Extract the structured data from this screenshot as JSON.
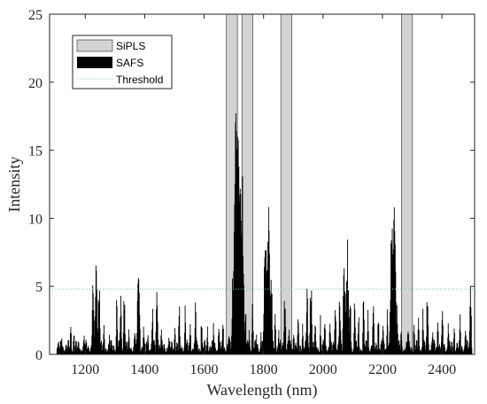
{
  "chart_data": {
    "type": "bar",
    "xlabel": "Wavelength (nm)",
    "ylabel": "Intensity",
    "xlim": [
      1080,
      2510
    ],
    "ylim": [
      0,
      25
    ],
    "x_ticks": [
      1200,
      1400,
      1600,
      1800,
      2000,
      2200,
      2400
    ],
    "y_ticks": [
      0,
      5,
      10,
      15,
      20,
      25
    ],
    "grid": false,
    "legend_placement": "top-left",
    "threshold": {
      "name": "Threshold",
      "value": 4.8,
      "color": "#7fbfbf"
    },
    "sipls_intervals": {
      "name": "SiPLS",
      "color": "#d3d3d3",
      "ranges": [
        [
          1675,
          1712
        ],
        [
          1727,
          1764
        ],
        [
          1858,
          1895
        ],
        [
          2264,
          2301
        ]
      ]
    },
    "safs_peaks": {
      "name": "SAFS",
      "color": "#000000",
      "peaks": [
        [
          1105,
          0.8
        ],
        [
          1120,
          1.2
        ],
        [
          1150,
          2.9
        ],
        [
          1160,
          2.2
        ],
        [
          1195,
          1.9
        ],
        [
          1225,
          6.2
        ],
        [
          1235,
          7.0
        ],
        [
          1245,
          6.1
        ],
        [
          1262,
          2.5
        ],
        [
          1280,
          1.8
        ],
        [
          1305,
          4.4
        ],
        [
          1318,
          4.7
        ],
        [
          1330,
          5.0
        ],
        [
          1345,
          2.1
        ],
        [
          1365,
          2.4
        ],
        [
          1378,
          7.5
        ],
        [
          1395,
          2.3
        ],
        [
          1410,
          1.9
        ],
        [
          1425,
          3.9
        ],
        [
          1440,
          5.6
        ],
        [
          1455,
          2.1
        ],
        [
          1480,
          1.6
        ],
        [
          1500,
          2.5
        ],
        [
          1515,
          4.0
        ],
        [
          1535,
          3.7
        ],
        [
          1552,
          2.6
        ],
        [
          1570,
          4.1
        ],
        [
          1590,
          3.2
        ],
        [
          1610,
          2.1
        ],
        [
          1630,
          2.5
        ],
        [
          1648,
          3.1
        ],
        [
          1662,
          3.0
        ],
        [
          1682,
          2.2
        ],
        [
          1695,
          6.0
        ],
        [
          1705,
          18.5
        ],
        [
          1710,
          20.4
        ],
        [
          1718,
          15.8
        ],
        [
          1726,
          14.0
        ],
        [
          1738,
          3.7
        ],
        [
          1750,
          2.1
        ],
        [
          1762,
          4.4
        ],
        [
          1775,
          1.6
        ],
        [
          1790,
          2.2
        ],
        [
          1805,
          9.4
        ],
        [
          1815,
          11.0
        ],
        [
          1825,
          6.1
        ],
        [
          1838,
          3.6
        ],
        [
          1850,
          2.0
        ],
        [
          1870,
          5.0
        ],
        [
          1885,
          2.4
        ],
        [
          1900,
          2.1
        ],
        [
          1915,
          4.0
        ],
        [
          1930,
          2.7
        ],
        [
          1945,
          5.0
        ],
        [
          1958,
          6.1
        ],
        [
          1972,
          3.3
        ],
        [
          1990,
          3.0
        ],
        [
          2005,
          3.6
        ],
        [
          2022,
          2.7
        ],
        [
          2040,
          4.4
        ],
        [
          2055,
          4.9
        ],
        [
          2070,
          7.0
        ],
        [
          2080,
          8.8
        ],
        [
          2090,
          4.7
        ],
        [
          2105,
          4.1
        ],
        [
          2118,
          3.6
        ],
        [
          2135,
          4.6
        ],
        [
          2150,
          3.4
        ],
        [
          2168,
          4.3
        ],
        [
          2185,
          3.5
        ],
        [
          2200,
          2.9
        ],
        [
          2215,
          3.6
        ],
        [
          2230,
          9.8
        ],
        [
          2238,
          12.1
        ],
        [
          2248,
          4.0
        ],
        [
          2262,
          2.3
        ],
        [
          2285,
          2.4
        ],
        [
          2305,
          3.1
        ],
        [
          2320,
          2.8
        ],
        [
          2335,
          3.5
        ],
        [
          2350,
          5.5
        ],
        [
          2368,
          2.6
        ],
        [
          2385,
          3.4
        ],
        [
          2400,
          4.3
        ],
        [
          2420,
          3.0
        ],
        [
          2440,
          2.6
        ],
        [
          2460,
          3.2
        ],
        [
          2478,
          2.3
        ],
        [
          2495,
          5.3
        ]
      ]
    }
  }
}
